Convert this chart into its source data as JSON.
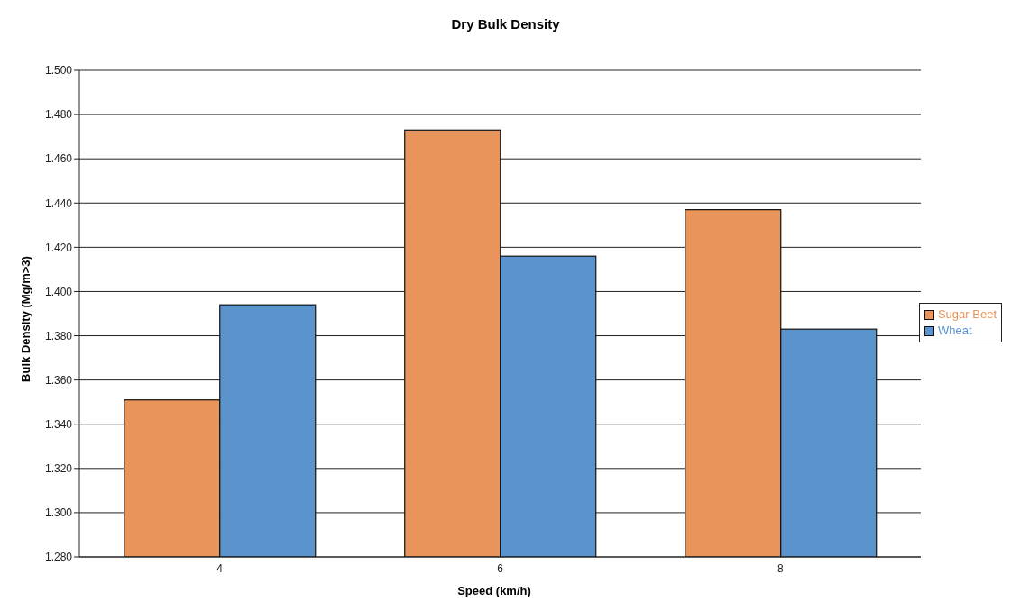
{
  "chart_data": {
    "type": "bar",
    "title": "Dry Bulk Density",
    "xlabel": "Speed (km/h)",
    "ylabel": "Bulk Density (Mg/m>3)",
    "categories": [
      "4",
      "6",
      "8"
    ],
    "series": [
      {
        "name": "Sugar Beet",
        "color": "#e8945a",
        "values": [
          1.351,
          1.473,
          1.437
        ]
      },
      {
        "name": "Wheat",
        "color": "#5b93cc",
        "values": [
          1.394,
          1.416,
          1.383
        ]
      }
    ],
    "ylim": [
      1.28,
      1.5
    ],
    "yticks": [
      {
        "value": 1.28,
        "label": "1.280"
      },
      {
        "value": 1.3,
        "label": "1.300"
      },
      {
        "value": 1.32,
        "label": "1.320"
      },
      {
        "value": 1.34,
        "label": "1.340"
      },
      {
        "value": 1.36,
        "label": "1.360"
      },
      {
        "value": 1.38,
        "label": "1.380"
      },
      {
        "value": 1.4,
        "label": "1.400"
      },
      {
        "value": 1.42,
        "label": "1.420"
      },
      {
        "value": 1.44,
        "label": "1.440"
      },
      {
        "value": 1.46,
        "label": "1.460"
      },
      {
        "value": 1.48,
        "label": "1.480"
      },
      {
        "value": 1.5,
        "label": "1.500"
      }
    ],
    "grid": "y",
    "legend": "right"
  }
}
